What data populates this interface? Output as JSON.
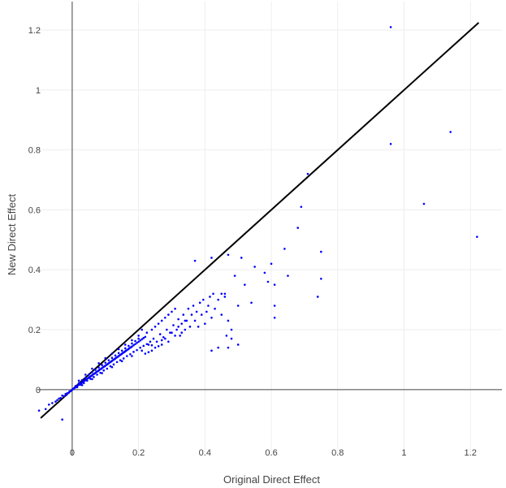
{
  "chart_data": {
    "type": "scatter",
    "title": "",
    "xlabel": "Original Direct Effect",
    "ylabel": "New Direct Effect",
    "xlim": [
      -0.105,
      1.295
    ],
    "ylim": [
      -0.22,
      1.295
    ],
    "x_ticks": [
      0,
      0.2,
      0.4,
      0.6,
      0.8,
      1,
      1.2
    ],
    "y_ticks": [
      0,
      0.2,
      0.4,
      0.6,
      0.8,
      1,
      1.2
    ],
    "x_tick_labels": [
      "0",
      "0.2",
      "0.4",
      "0.6",
      "0.8",
      "1",
      "1.2"
    ],
    "y_tick_labels": [
      "0",
      "0.2",
      "0.4",
      "0.6",
      "0.8",
      "1",
      "1.2"
    ],
    "grid": true,
    "zero_lines": true,
    "legend": "none",
    "reference_line": {
      "x": [
        -0.095,
        1.225
      ],
      "y": [
        -0.095,
        1.225
      ],
      "color": "#000000"
    },
    "marker_color": "#0000ff",
    "points": [
      [
        -0.1,
        -0.07
      ],
      [
        -0.08,
        -0.065
      ],
      [
        -0.07,
        -0.05
      ],
      [
        -0.06,
        -0.045
      ],
      [
        -0.05,
        -0.04
      ],
      [
        -0.045,
        -0.035
      ],
      [
        -0.04,
        -0.03
      ],
      [
        -0.035,
        -0.028
      ],
      [
        -0.03,
        -0.02
      ],
      [
        -0.03,
        -0.1
      ],
      [
        -0.025,
        -0.022
      ],
      [
        -0.02,
        -0.015
      ],
      [
        -0.018,
        -0.018
      ],
      [
        -0.015,
        -0.012
      ],
      [
        -0.01,
        -0.01
      ],
      [
        -0.008,
        -0.006
      ],
      [
        -0.005,
        -0.005
      ],
      [
        -0.003,
        -0.004
      ],
      [
        0.0,
        0.0
      ],
      [
        0.003,
        0.002
      ],
      [
        0.005,
        0.004
      ],
      [
        0.008,
        0.006
      ],
      [
        0.01,
        0.008
      ],
      [
        0.012,
        0.009
      ],
      [
        0.015,
        0.012
      ],
      [
        0.018,
        0.015
      ],
      [
        0.02,
        0.016
      ],
      [
        0.022,
        0.018
      ],
      [
        0.025,
        0.02
      ],
      [
        0.028,
        0.022
      ],
      [
        0.03,
        0.024
      ],
      [
        0.032,
        0.026
      ],
      [
        0.035,
        0.028
      ],
      [
        0.038,
        0.03
      ],
      [
        0.04,
        0.032
      ],
      [
        0.042,
        0.034
      ],
      [
        0.045,
        0.036
      ],
      [
        0.048,
        0.038
      ],
      [
        0.05,
        0.04
      ],
      [
        0.052,
        0.042
      ],
      [
        0.055,
        0.044
      ],
      [
        0.058,
        0.046
      ],
      [
        0.06,
        0.048
      ],
      [
        0.062,
        0.05
      ],
      [
        0.065,
        0.052
      ],
      [
        0.068,
        0.054
      ],
      [
        0.07,
        0.056
      ],
      [
        0.072,
        0.058
      ],
      [
        0.075,
        0.06
      ],
      [
        0.078,
        0.062
      ],
      [
        0.08,
        0.064
      ],
      [
        0.082,
        0.066
      ],
      [
        0.085,
        0.068
      ],
      [
        0.088,
        0.07
      ],
      [
        0.09,
        0.072
      ],
      [
        0.092,
        0.074
      ],
      [
        0.095,
        0.076
      ],
      [
        0.098,
        0.078
      ],
      [
        0.1,
        0.08
      ],
      [
        0.102,
        0.082
      ],
      [
        0.105,
        0.084
      ],
      [
        0.108,
        0.086
      ],
      [
        0.11,
        0.088
      ],
      [
        0.112,
        0.09
      ],
      [
        0.115,
        0.092
      ],
      [
        0.118,
        0.094
      ],
      [
        0.12,
        0.096
      ],
      [
        0.122,
        0.098
      ],
      [
        0.125,
        0.1
      ],
      [
        0.128,
        0.102
      ],
      [
        0.13,
        0.104
      ],
      [
        0.132,
        0.106
      ],
      [
        0.135,
        0.108
      ],
      [
        0.138,
        0.11
      ],
      [
        0.14,
        0.112
      ],
      [
        0.142,
        0.114
      ],
      [
        0.145,
        0.116
      ],
      [
        0.148,
        0.118
      ],
      [
        0.15,
        0.12
      ],
      [
        0.152,
        0.122
      ],
      [
        0.155,
        0.124
      ],
      [
        0.158,
        0.126
      ],
      [
        0.16,
        0.128
      ],
      [
        0.162,
        0.13
      ],
      [
        0.165,
        0.132
      ],
      [
        0.168,
        0.134
      ],
      [
        0.17,
        0.136
      ],
      [
        0.172,
        0.138
      ],
      [
        0.175,
        0.14
      ],
      [
        0.178,
        0.142
      ],
      [
        0.18,
        0.144
      ],
      [
        0.185,
        0.148
      ],
      [
        0.19,
        0.152
      ],
      [
        0.195,
        0.156
      ],
      [
        0.2,
        0.16
      ],
      [
        0.205,
        0.164
      ],
      [
        0.21,
        0.168
      ],
      [
        0.215,
        0.172
      ],
      [
        0.22,
        0.176
      ],
      [
        0.01,
        0.012
      ],
      [
        0.02,
        0.022
      ],
      [
        0.03,
        0.032
      ],
      [
        0.04,
        0.04
      ],
      [
        0.05,
        0.05
      ],
      [
        0.06,
        0.058
      ],
      [
        0.07,
        0.066
      ],
      [
        0.08,
        0.074
      ],
      [
        0.09,
        0.082
      ],
      [
        0.1,
        0.09
      ],
      [
        0.11,
        0.098
      ],
      [
        0.12,
        0.106
      ],
      [
        0.13,
        0.114
      ],
      [
        0.14,
        0.122
      ],
      [
        0.15,
        0.13
      ],
      [
        0.16,
        0.138
      ],
      [
        0.17,
        0.146
      ],
      [
        0.18,
        0.154
      ],
      [
        0.19,
        0.162
      ],
      [
        0.2,
        0.17
      ],
      [
        0.015,
        0.008
      ],
      [
        0.025,
        0.016
      ],
      [
        0.035,
        0.022
      ],
      [
        0.045,
        0.03
      ],
      [
        0.055,
        0.036
      ],
      [
        0.065,
        0.042
      ],
      [
        0.075,
        0.05
      ],
      [
        0.085,
        0.056
      ],
      [
        0.095,
        0.064
      ],
      [
        0.105,
        0.07
      ],
      [
        0.115,
        0.078
      ],
      [
        0.125,
        0.084
      ],
      [
        0.135,
        0.092
      ],
      [
        0.145,
        0.098
      ],
      [
        0.155,
        0.104
      ],
      [
        0.165,
        0.112
      ],
      [
        0.175,
        0.118
      ],
      [
        0.185,
        0.126
      ],
      [
        0.195,
        0.132
      ],
      [
        0.205,
        0.14
      ],
      [
        0.215,
        0.146
      ],
      [
        0.225,
        0.152
      ],
      [
        0.235,
        0.16
      ],
      [
        0.02,
        0.03
      ],
      [
        0.04,
        0.05
      ],
      [
        0.06,
        0.07
      ],
      [
        0.08,
        0.088
      ],
      [
        0.1,
        0.105
      ],
      [
        0.12,
        0.12
      ],
      [
        0.14,
        0.135
      ],
      [
        0.16,
        0.15
      ],
      [
        0.18,
        0.165
      ],
      [
        0.2,
        0.18
      ],
      [
        0.03,
        0.015
      ],
      [
        0.06,
        0.035
      ],
      [
        0.09,
        0.055
      ],
      [
        0.12,
        0.075
      ],
      [
        0.15,
        0.095
      ],
      [
        0.18,
        0.112
      ],
      [
        0.21,
        0.13
      ],
      [
        0.24,
        0.148
      ],
      [
        0.27,
        0.165
      ],
      [
        0.225,
        0.19
      ],
      [
        0.23,
        0.15
      ],
      [
        0.24,
        0.2
      ],
      [
        0.245,
        0.17
      ],
      [
        0.25,
        0.21
      ],
      [
        0.255,
        0.16
      ],
      [
        0.26,
        0.22
      ],
      [
        0.265,
        0.185
      ],
      [
        0.27,
        0.23
      ],
      [
        0.275,
        0.175
      ],
      [
        0.28,
        0.24
      ],
      [
        0.285,
        0.2
      ],
      [
        0.29,
        0.25
      ],
      [
        0.295,
        0.19
      ],
      [
        0.3,
        0.26
      ],
      [
        0.305,
        0.215
      ],
      [
        0.31,
        0.27
      ],
      [
        0.315,
        0.2
      ],
      [
        0.32,
        0.235
      ],
      [
        0.325,
        0.18
      ],
      [
        0.33,
        0.22
      ],
      [
        0.335,
        0.25
      ],
      [
        0.34,
        0.2
      ],
      [
        0.345,
        0.23
      ],
      [
        0.35,
        0.27
      ],
      [
        0.355,
        0.21
      ],
      [
        0.36,
        0.25
      ],
      [
        0.365,
        0.28
      ],
      [
        0.37,
        0.23
      ],
      [
        0.375,
        0.26
      ],
      [
        0.38,
        0.21
      ],
      [
        0.385,
        0.29
      ],
      [
        0.39,
        0.25
      ],
      [
        0.395,
        0.3
      ],
      [
        0.4,
        0.22
      ],
      [
        0.405,
        0.26
      ],
      [
        0.41,
        0.28
      ],
      [
        0.415,
        0.31
      ],
      [
        0.42,
        0.24
      ],
      [
        0.425,
        0.32
      ],
      [
        0.43,
        0.27
      ],
      [
        0.44,
        0.3
      ],
      [
        0.45,
        0.25
      ],
      [
        0.46,
        0.32
      ],
      [
        0.465,
        0.18
      ],
      [
        0.47,
        0.23
      ],
      [
        0.48,
        0.2
      ],
      [
        0.5,
        0.15
      ],
      [
        0.5,
        0.28
      ],
      [
        0.21,
        0.2
      ],
      [
        0.22,
        0.12
      ],
      [
        0.23,
        0.125
      ],
      [
        0.24,
        0.13
      ],
      [
        0.25,
        0.14
      ],
      [
        0.26,
        0.145
      ],
      [
        0.27,
        0.15
      ],
      [
        0.28,
        0.17
      ],
      [
        0.29,
        0.16
      ],
      [
        0.3,
        0.19
      ],
      [
        0.31,
        0.18
      ],
      [
        0.32,
        0.21
      ],
      [
        0.33,
        0.19
      ],
      [
        0.34,
        0.23
      ],
      [
        0.37,
        0.43
      ],
      [
        0.42,
        0.44
      ],
      [
        0.47,
        0.45
      ],
      [
        0.49,
        0.38
      ],
      [
        0.51,
        0.44
      ],
      [
        0.52,
        0.35
      ],
      [
        0.54,
        0.29
      ],
      [
        0.55,
        0.41
      ],
      [
        0.58,
        0.39
      ],
      [
        0.59,
        0.36
      ],
      [
        0.6,
        0.42
      ],
      [
        0.61,
        0.35
      ],
      [
        0.61,
        0.28
      ],
      [
        0.61,
        0.24
      ],
      [
        0.64,
        0.47
      ],
      [
        0.65,
        0.38
      ],
      [
        0.68,
        0.54
      ],
      [
        0.69,
        0.61
      ],
      [
        0.71,
        0.72
      ],
      [
        0.74,
        0.31
      ],
      [
        0.75,
        0.37
      ],
      [
        0.75,
        0.46
      ],
      [
        0.96,
        1.21
      ],
      [
        0.96,
        0.82
      ],
      [
        1.06,
        0.62
      ],
      [
        1.14,
        0.86
      ],
      [
        1.22,
        0.51
      ],
      [
        0.45,
        0.32
      ],
      [
        0.46,
        0.31
      ],
      [
        0.44,
        0.14
      ],
      [
        0.42,
        0.13
      ],
      [
        0.47,
        0.14
      ],
      [
        0.48,
        0.17
      ]
    ]
  }
}
